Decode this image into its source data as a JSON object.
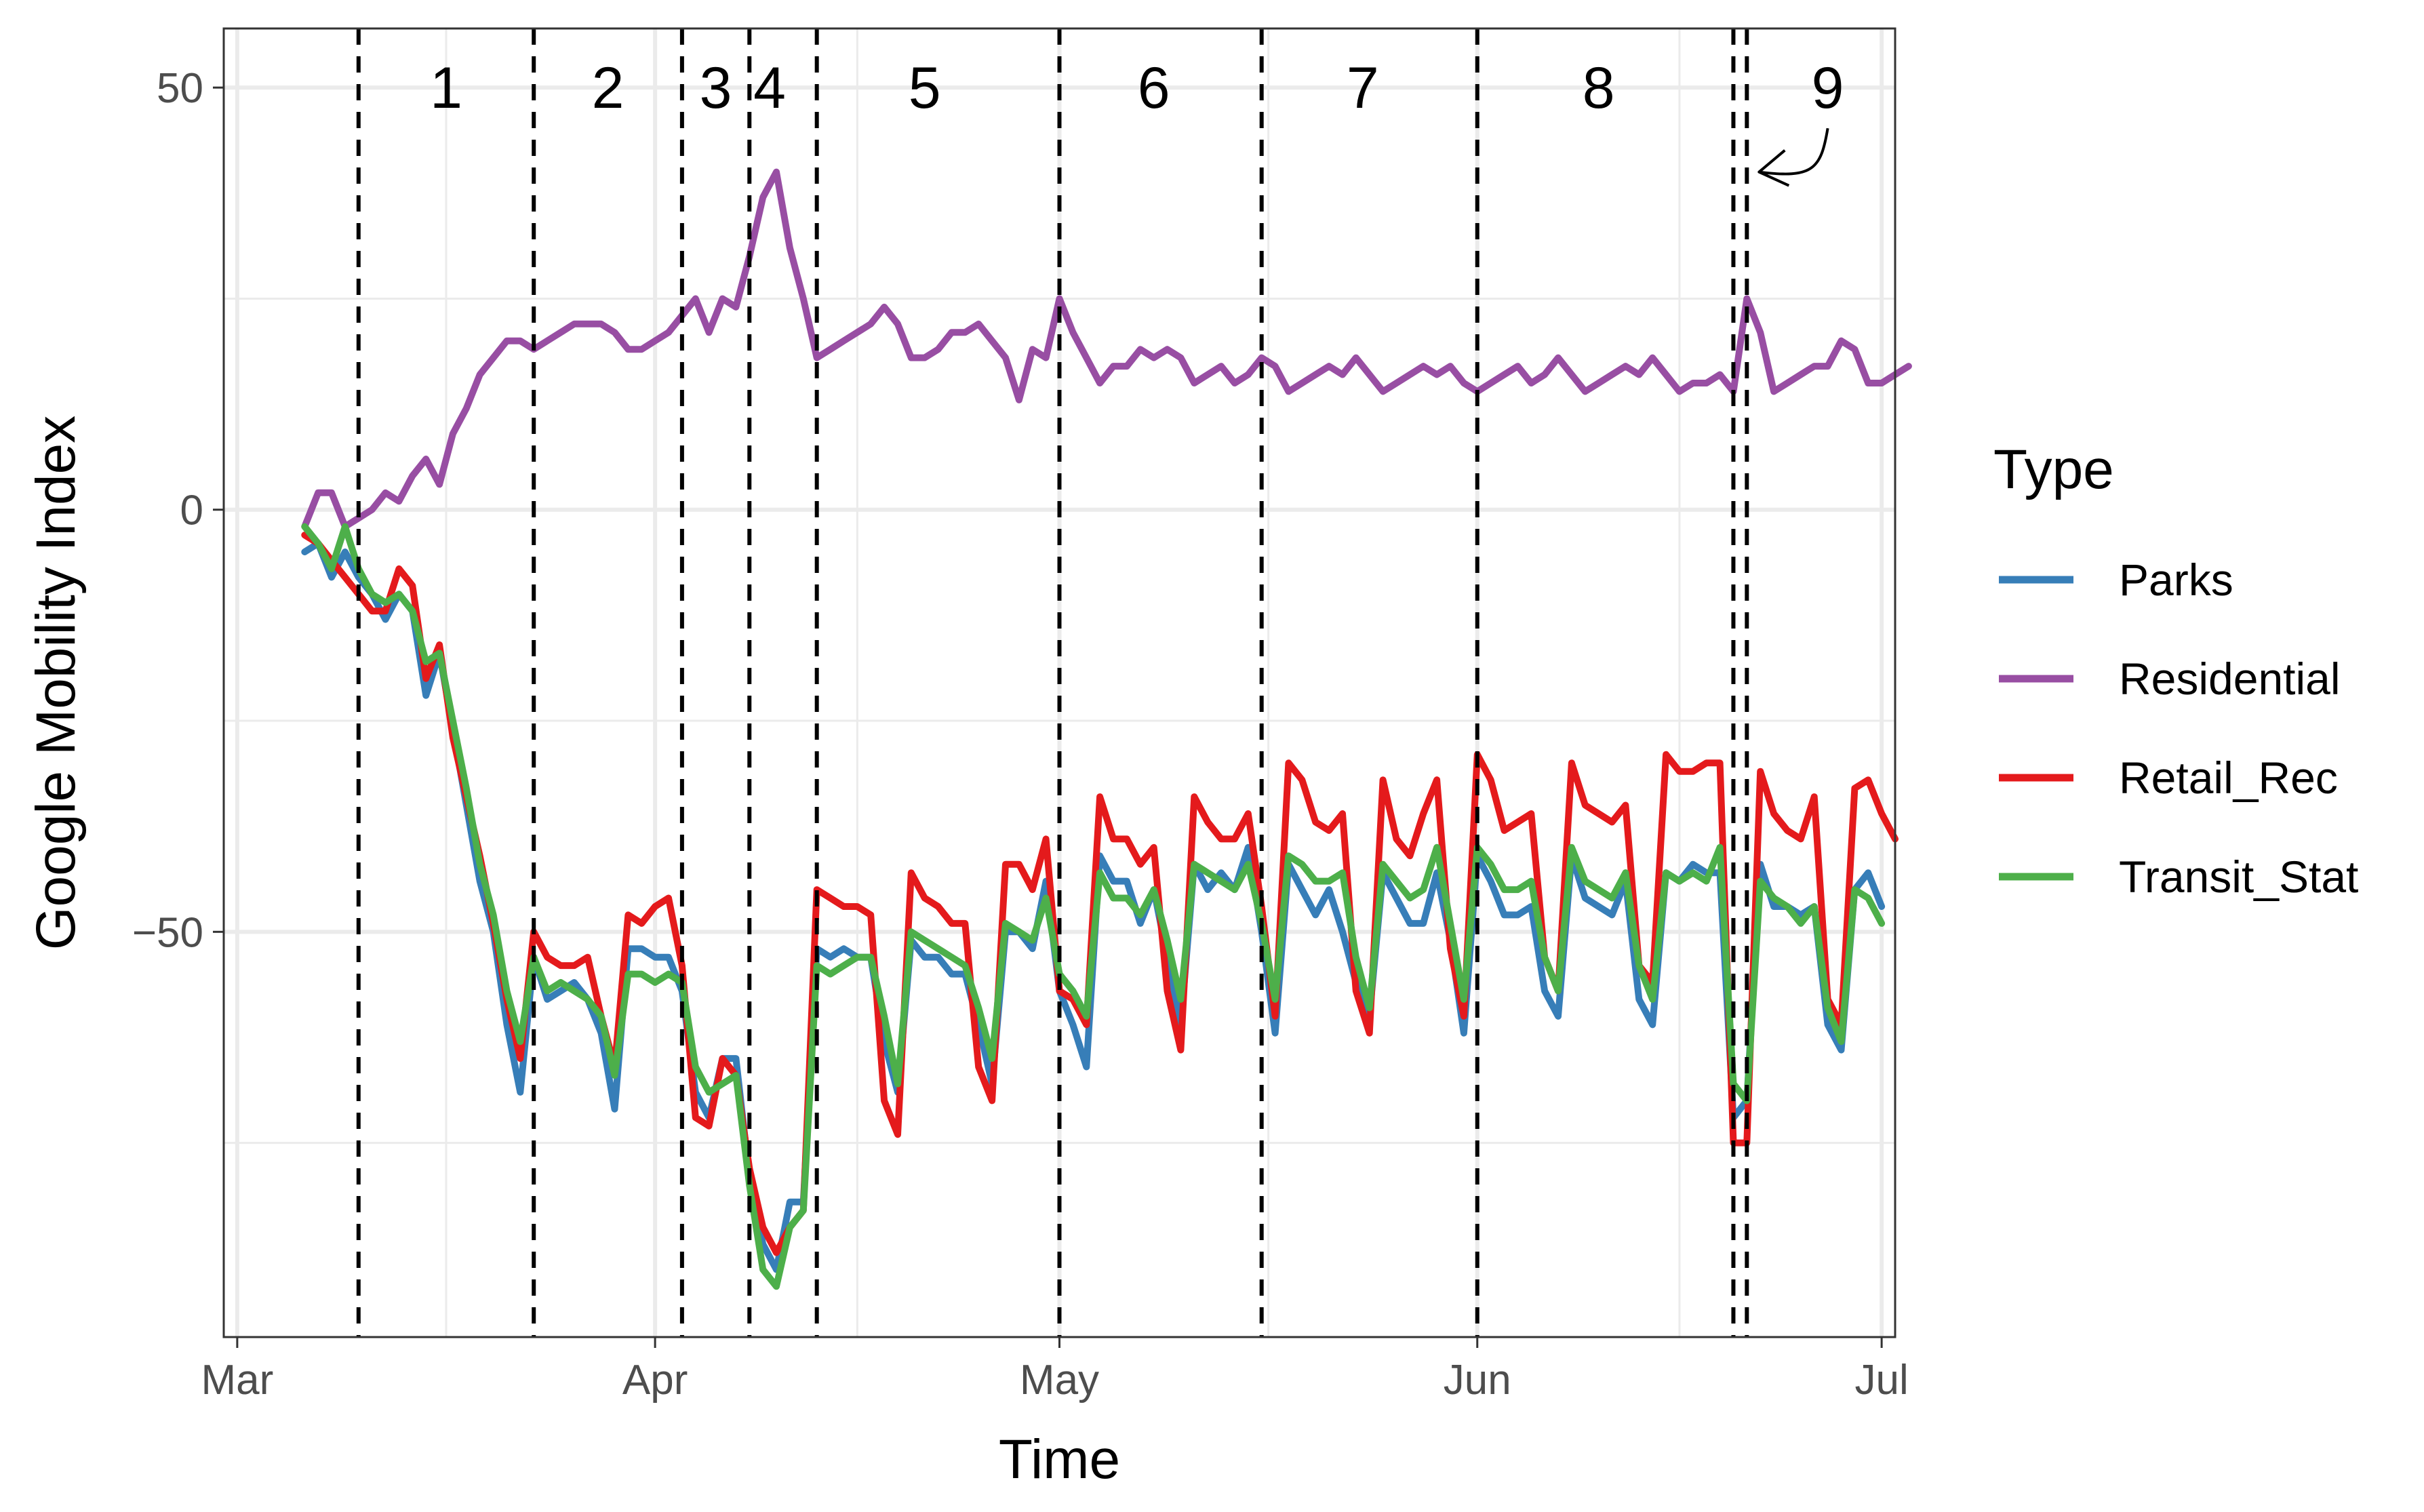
{
  "chart_data": {
    "type": "line",
    "title": "",
    "xlabel": "Time",
    "ylabel": "Google Mobility Index",
    "x_axis": {
      "unit": "day_of_year_2020",
      "range": [
        60,
        184
      ],
      "ticks": [
        {
          "label": "Mar",
          "day": 61
        },
        {
          "label": "Apr",
          "day": 92
        },
        {
          "label": "May",
          "day": 122
        },
        {
          "label": "Jun",
          "day": 153
        },
        {
          "label": "Jul",
          "day": 183
        }
      ]
    },
    "y_axis": {
      "range": [
        -98,
        57
      ],
      "ticks": [
        {
          "label": "50",
          "value": 50
        },
        {
          "label": "0",
          "value": 0
        },
        {
          "label": "−50",
          "value": -50
        }
      ],
      "minor_gridlines": [
        25,
        -25,
        -75
      ]
    },
    "grid": true,
    "legend": {
      "title": "Type",
      "position": "right",
      "entries": [
        "Parks",
        "Residential",
        "Retail_Rec",
        "Transit_Stat"
      ]
    },
    "phase_boundaries": [
      70,
      83,
      94,
      99,
      104,
      122,
      137,
      153,
      172,
      173
    ],
    "phases": [
      {
        "label": "1",
        "day": 76.5
      },
      {
        "label": "2",
        "day": 88.5
      },
      {
        "label": "3",
        "day": 96.5
      },
      {
        "label": "4",
        "day": 100.5
      },
      {
        "label": "5",
        "day": 112
      },
      {
        "label": "6",
        "day": 129
      },
      {
        "label": "7",
        "day": 144.5
      },
      {
        "label": "8",
        "day": 162
      },
      {
        "label": "9",
        "day": 179
      }
    ],
    "annotation": {
      "label_phase": "9",
      "points_to_day": 173,
      "value": 40
    },
    "x_start_day": 66,
    "series": [
      {
        "name": "Residential",
        "color": "#984EA3",
        "values": [
          -2,
          2,
          2,
          -2,
          -1,
          0,
          2,
          1,
          4,
          6,
          3,
          9,
          12,
          16,
          18,
          20,
          20,
          19,
          20,
          21,
          22,
          22,
          22,
          21,
          19,
          19,
          20,
          21,
          23,
          25,
          21,
          25,
          24,
          30,
          37,
          40,
          31,
          25,
          18,
          19,
          20,
          21,
          22,
          24,
          22,
          18,
          18,
          19,
          21,
          21,
          22,
          20,
          18,
          13,
          19,
          18,
          25,
          21,
          18,
          15,
          17,
          17,
          19,
          18,
          19,
          18,
          15,
          16,
          17,
          15,
          16,
          18,
          17,
          14,
          15,
          16,
          17,
          16,
          18,
          16,
          14,
          15,
          16,
          17,
          16,
          17,
          15,
          14,
          15,
          16,
          17,
          15,
          16,
          18,
          16,
          14,
          15,
          16,
          17,
          16,
          18,
          16,
          14,
          15,
          15,
          16,
          14,
          25,
          21,
          14,
          15,
          16,
          17,
          17,
          20,
          19,
          15,
          15,
          16,
          17
        ]
      },
      {
        "name": "Parks",
        "color": "#377EB8",
        "values": [
          -5,
          -4,
          -8,
          -5,
          -8,
          -10,
          -13,
          -10,
          -12,
          -22,
          -17,
          -26,
          -35,
          -44,
          -50,
          -61,
          -69,
          -53,
          -58,
          -57,
          -56,
          -58,
          -62,
          -71,
          -52,
          -52,
          -53,
          -53,
          -57,
          -69,
          -72,
          -65,
          -65,
          -79,
          -87,
          -90,
          -82,
          -82,
          -52,
          -53,
          -52,
          -53,
          -53,
          -63,
          -69,
          -51,
          -53,
          -53,
          -55,
          -55,
          -61,
          -68,
          -50,
          -50,
          -52,
          -44,
          -57,
          -61,
          -66,
          -41,
          -44,
          -44,
          -49,
          -45,
          -53,
          -61,
          -42,
          -45,
          -43,
          -45,
          -40,
          -50,
          -62,
          -42,
          -45,
          -48,
          -45,
          -50,
          -56,
          -60,
          -43,
          -46,
          -49,
          -49,
          -43,
          -51,
          -62,
          -41,
          -44,
          -48,
          -48,
          -47,
          -57,
          -60,
          -41,
          -46,
          -47,
          -48,
          -44,
          -58,
          -61,
          -43,
          -44,
          -42,
          -43,
          -43,
          -72,
          -70,
          -42,
          -47,
          -47,
          -48,
          -47,
          -61,
          -64,
          -45,
          -43,
          -47
        ]
      },
      {
        "name": "Retail_Rec",
        "color": "#E41A1C",
        "values": [
          -3,
          -4,
          -6,
          -8,
          -10,
          -12,
          -12,
          -7,
          -9,
          -20,
          -16,
          -27,
          -34,
          -41,
          -49,
          -58,
          -65,
          -50,
          -53,
          -54,
          -54,
          -53,
          -60,
          -66,
          -48,
          -49,
          -47,
          -46,
          -54,
          -72,
          -73,
          -65,
          -67,
          -78,
          -85,
          -88,
          -85,
          -83,
          -45,
          -46,
          -47,
          -47,
          -48,
          -70,
          -74,
          -43,
          -46,
          -47,
          -49,
          -49,
          -66,
          -70,
          -42,
          -42,
          -45,
          -39,
          -57,
          -58,
          -61,
          -34,
          -39,
          -39,
          -42,
          -40,
          -57,
          -64,
          -34,
          -37,
          -39,
          -39,
          -36,
          -47,
          -60,
          -30,
          -32,
          -37,
          -38,
          -36,
          -57,
          -62,
          -32,
          -39,
          -41,
          -36,
          -32,
          -52,
          -60,
          -29,
          -32,
          -38,
          -37,
          -36,
          -53,
          -57,
          -30,
          -35,
          -36,
          -37,
          -35,
          -54,
          -56,
          -29,
          -31,
          -31,
          -30,
          -30,
          -75,
          -75,
          -31,
          -36,
          -38,
          -39,
          -34,
          -58,
          -61,
          -33,
          -32,
          -36,
          -39
        ]
      },
      {
        "name": "Transit_Stat",
        "color": "#4DAF4A",
        "values": [
          -2,
          -4,
          -7,
          -2,
          -7,
          -10,
          -11,
          -10,
          -12,
          -18,
          -17,
          -25,
          -33,
          -42,
          -48,
          -57,
          -63,
          -53,
          -57,
          -56,
          -57,
          -58,
          -60,
          -67,
          -55,
          -55,
          -56,
          -55,
          -56,
          -66,
          -69,
          -68,
          -67,
          -80,
          -90,
          -92,
          -85,
          -83,
          -54,
          -55,
          -54,
          -53,
          -53,
          -60,
          -68,
          -50,
          -51,
          -52,
          -53,
          -54,
          -59,
          -65,
          -49,
          -50,
          -51,
          -46,
          -55,
          -57,
          -60,
          -43,
          -46,
          -46,
          -48,
          -45,
          -51,
          -58,
          -42,
          -43,
          -44,
          -45,
          -42,
          -49,
          -58,
          -41,
          -42,
          -44,
          -44,
          -43,
          -53,
          -59,
          -42,
          -44,
          -46,
          -45,
          -40,
          -49,
          -58,
          -40,
          -42,
          -45,
          -45,
          -44,
          -53,
          -57,
          -40,
          -44,
          -45,
          -46,
          -43,
          -54,
          -58,
          -43,
          -44,
          -43,
          -44,
          -40,
          -68,
          -70,
          -44,
          -46,
          -47,
          -49,
          -47,
          -59,
          -63,
          -45,
          -46,
          -49
        ]
      }
    ]
  }
}
